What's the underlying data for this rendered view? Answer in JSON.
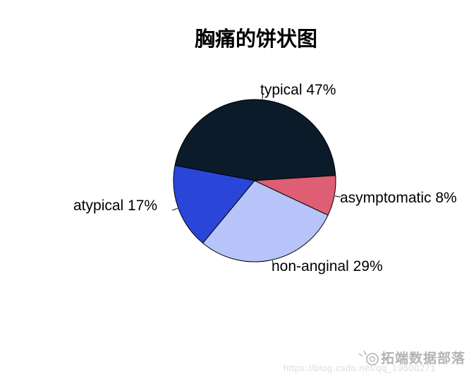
{
  "chart_data": {
    "type": "pie",
    "title": "胸痛的饼状图",
    "categories": [
      "typical",
      "atypical",
      "non-anginal",
      "asymptomatic"
    ],
    "values": [
      47,
      17,
      29,
      8
    ],
    "unit": "%",
    "start_angle_deg": 0,
    "direction": "counterclockwise",
    "stroke": "#000000",
    "background": "#ffffff",
    "slices": [
      {
        "label": "typical",
        "pct": 47,
        "display": "typical 47%",
        "color": "#0C1B29"
      },
      {
        "label": "atypical",
        "pct": 17,
        "display": "atypical 17%",
        "color": "#2A46D8"
      },
      {
        "label": "non-anginal",
        "pct": 29,
        "display": "non-anginal 29%",
        "color": "#B6C4F9"
      },
      {
        "label": "asymptomatic",
        "pct": 8,
        "display": "asymptomatic 8%",
        "color": "#DE5E73"
      }
    ]
  },
  "watermark": {
    "brand": "拓端数据部落",
    "url": "https://blog.csdn.net/qq_19600271"
  }
}
